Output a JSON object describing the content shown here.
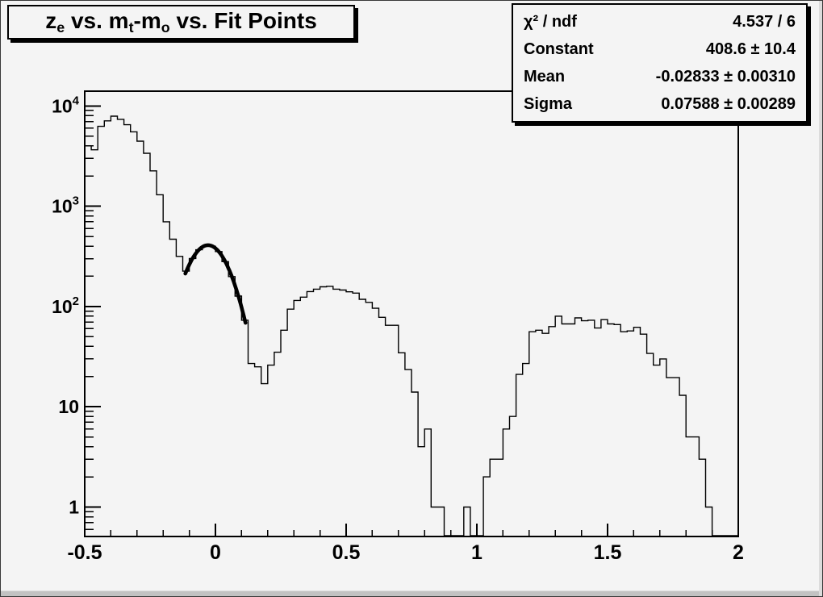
{
  "colors": {
    "canvas_bg": "#f4f4f4",
    "line": "#000000",
    "text": "#000000",
    "shadow": "#000000",
    "bevel": "#c2c2c2"
  },
  "title": {
    "plain": "z_e vs. m_t-m_o vs. Fit Points",
    "segments": [
      {
        "text": "z",
        "sub": false
      },
      {
        "text": "e",
        "sub": true
      },
      {
        "text": " vs. m",
        "sub": false
      },
      {
        "text": "t",
        "sub": true
      },
      {
        "text": "-m",
        "sub": false
      },
      {
        "text": "o",
        "sub": true
      },
      {
        "text": " vs. Fit Points",
        "sub": false
      }
    ]
  },
  "stats": {
    "rows": [
      {
        "label": "χ² / ndf",
        "value": "4.537 / 6"
      },
      {
        "label": "Constant",
        "value": "408.6 ± 10.4"
      },
      {
        "label": "Mean",
        "value": "-0.02833 ± 0.00310"
      },
      {
        "label": "Sigma",
        "value": "0.07588 ± 0.00289"
      }
    ]
  },
  "chart_data": {
    "type": "bar",
    "subtype": "step-histogram-logy",
    "title": "z_e vs. m_t-m_o vs. Fit Points",
    "xlabel": "",
    "ylabel": "",
    "xlim": [
      -0.5,
      2
    ],
    "ylim_log": [
      0.5,
      13900
    ],
    "grid": false,
    "x_start": -0.5,
    "bin_width": 0.025,
    "values": [
      4000,
      3650,
      6260,
      7100,
      7900,
      7350,
      6500,
      5520,
      4450,
      3370,
      2250,
      1300,
      700,
      469,
      316,
      225,
      301,
      368,
      405,
      399,
      353,
      280,
      199,
      127,
      73,
      27,
      25,
      17,
      26,
      35,
      58,
      94,
      115,
      124,
      141,
      149,
      157,
      159,
      149,
      146,
      140,
      136,
      118,
      110,
      96,
      78,
      65,
      65,
      34.5,
      23.5,
      14,
      4,
      6,
      1,
      1,
      0,
      0,
      0,
      1,
      0,
      0,
      2,
      3,
      3,
      6,
      8,
      21,
      27,
      56,
      58,
      54,
      63,
      80,
      67,
      67,
      77,
      72,
      73,
      61,
      74,
      67,
      66,
      56,
      57,
      62,
      53,
      34,
      26,
      30,
      19.5,
      19.5,
      13,
      5,
      5,
      3,
      1,
      0,
      0,
      0,
      0
    ],
    "x_ticks": [
      {
        "v": -0.5,
        "label": "-0.5"
      },
      {
        "v": 0,
        "label": "0"
      },
      {
        "v": 0.5,
        "label": "0.5"
      },
      {
        "v": 1,
        "label": "1"
      },
      {
        "v": 1.5,
        "label": "1.5"
      },
      {
        "v": 2,
        "label": "2"
      }
    ],
    "y_ticks": [
      {
        "v": 1,
        "base": "1",
        "exp": ""
      },
      {
        "v": 10,
        "base": "10",
        "exp": ""
      },
      {
        "v": 100,
        "base": "10",
        "exp": "2"
      },
      {
        "v": 1000,
        "base": "10",
        "exp": "3"
      },
      {
        "v": 10000,
        "base": "10",
        "exp": "4"
      }
    ],
    "fit": {
      "function": "gaus",
      "chi2": 4.537,
      "ndf": 6,
      "constant": 408.6,
      "mean": -0.02833,
      "sigma": 0.07588,
      "draw_range": [
        -0.115,
        0.115
      ]
    }
  }
}
